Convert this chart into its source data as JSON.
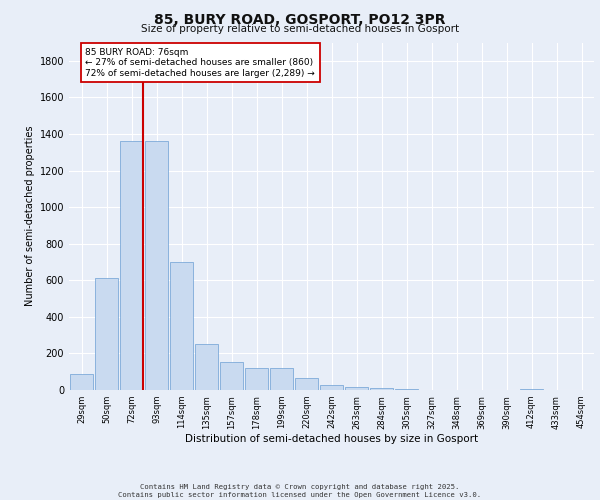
{
  "title_line1": "85, BURY ROAD, GOSPORT, PO12 3PR",
  "title_line2": "Size of property relative to semi-detached houses in Gosport",
  "xlabel": "Distribution of semi-detached houses by size in Gosport",
  "ylabel": "Number of semi-detached properties",
  "categories": [
    "29sqm",
    "50sqm",
    "72sqm",
    "93sqm",
    "114sqm",
    "135sqm",
    "157sqm",
    "178sqm",
    "199sqm",
    "220sqm",
    "242sqm",
    "263sqm",
    "284sqm",
    "305sqm",
    "327sqm",
    "348sqm",
    "369sqm",
    "390sqm",
    "412sqm",
    "433sqm",
    "454sqm"
  ],
  "values": [
    90,
    610,
    1360,
    1360,
    700,
    250,
    155,
    120,
    120,
    65,
    30,
    18,
    10,
    3,
    0,
    0,
    0,
    0,
    8,
    0,
    0
  ],
  "bar_color": "#c9daf0",
  "bar_edge_color": "#6b9fd4",
  "vline_color": "#cc0000",
  "vline_index": 2,
  "annotation_text": "85 BURY ROAD: 76sqm\n← 27% of semi-detached houses are smaller (860)\n72% of semi-detached houses are larger (2,289) →",
  "annotation_box_facecolor": "#ffffff",
  "annotation_box_edgecolor": "#cc0000",
  "ylim": [
    0,
    1900
  ],
  "yticks": [
    0,
    200,
    400,
    600,
    800,
    1000,
    1200,
    1400,
    1600,
    1800
  ],
  "background_color": "#e8eef8",
  "grid_color": "#ffffff",
  "footer_line1": "Contains HM Land Registry data © Crown copyright and database right 2025.",
  "footer_line2": "Contains public sector information licensed under the Open Government Licence v3.0."
}
